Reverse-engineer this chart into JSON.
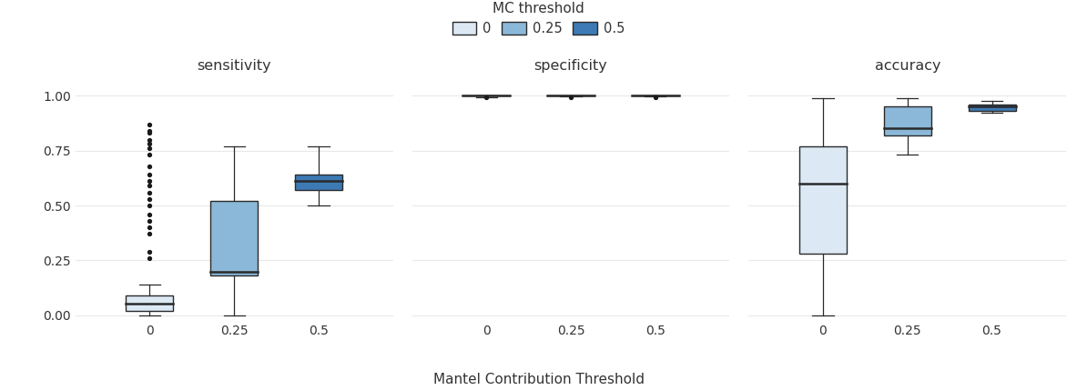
{
  "subplots": [
    "sensitivity",
    "specificity",
    "accuracy"
  ],
  "x_labels": [
    "0",
    "0.25",
    "0.5"
  ],
  "xlabel": "Mantel Contribution Threshold",
  "legend_title": "MC threshold",
  "legend_labels": [
    "0",
    "0.25",
    "0.5"
  ],
  "fig_bg_color": "#ffffff",
  "plot_bg_color": "#ffffff",
  "colors": [
    "#dce9f5",
    "#8bb8d8",
    "#3d7ab5"
  ],
  "box_edge_color": "#2a2a2a",
  "grid_color": "#e8e8e8",
  "sensitivity": {
    "mc0": {
      "q1": 0.02,
      "median": 0.055,
      "q3": 0.09,
      "whisker_low": 0.0,
      "whisker_high": 0.14,
      "outliers": [
        0.87,
        0.84,
        0.83,
        0.8,
        0.78,
        0.76,
        0.73,
        0.68,
        0.64,
        0.61,
        0.59,
        0.56,
        0.53,
        0.5,
        0.46,
        0.43,
        0.4,
        0.37,
        0.29,
        0.26
      ]
    },
    "mc025": {
      "q1": 0.18,
      "median": 0.2,
      "q3": 0.52,
      "whisker_low": 0.0,
      "whisker_high": 0.77,
      "outliers": []
    },
    "mc05": {
      "q1": 0.57,
      "median": 0.61,
      "q3": 0.64,
      "whisker_low": 0.5,
      "whisker_high": 0.77,
      "outliers": []
    }
  },
  "specificity": {
    "mc0": {
      "q1": 0.999,
      "median": 1.0,
      "q3": 1.0,
      "whisker_low": 0.994,
      "whisker_high": 1.0,
      "outliers": [
        0.991
      ]
    },
    "mc025": {
      "q1": 0.999,
      "median": 1.0,
      "q3": 1.0,
      "whisker_low": 0.995,
      "whisker_high": 1.0,
      "outliers": [
        0.993
      ]
    },
    "mc05": {
      "q1": 0.999,
      "median": 1.0,
      "q3": 1.0,
      "whisker_low": 0.996,
      "whisker_high": 1.0,
      "outliers": [
        0.993
      ]
    }
  },
  "accuracy": {
    "mc0": {
      "q1": 0.28,
      "median": 0.6,
      "q3": 0.77,
      "whisker_low": 0.0,
      "whisker_high": 0.99,
      "outliers": []
    },
    "mc025": {
      "q1": 0.82,
      "median": 0.85,
      "q3": 0.95,
      "whisker_low": 0.73,
      "whisker_high": 0.99,
      "outliers": []
    },
    "mc05": {
      "q1": 0.93,
      "median": 0.95,
      "q3": 0.96,
      "whisker_low": 0.92,
      "whisker_high": 0.975,
      "outliers": []
    }
  },
  "ylim": [
    -0.02,
    1.08
  ],
  "yticks": [
    0.0,
    0.25,
    0.5,
    0.75,
    1.0
  ]
}
